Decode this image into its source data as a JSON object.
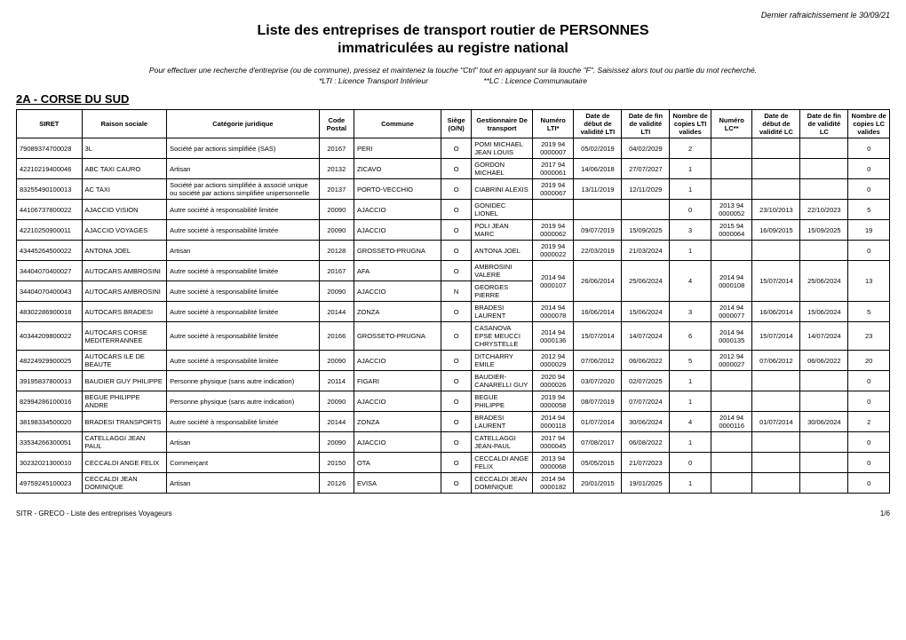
{
  "refresh_label": "Dernier rafraichissement le 30/09/21",
  "title_line1": "Liste des entreprises de transport routier de PERSONNES",
  "title_line2": "immatriculées au registre national",
  "instruction": "Pour effectuer une recherche d'entreprise (ou de commune), pressez et maintenez la touche \"Ctrl\" tout en appuyant sur la touche \"F\". Saisissez alors tout ou partie du mot recherché.",
  "legend_lti": "*LTI : Licence Transport Intérieur",
  "legend_lc": "**LC : Licence Communautaire",
  "section_title": "2A - CORSE DU SUD",
  "columns": [
    "SIRET",
    "Raison sociale",
    "Catégorie juridique",
    "Code Postal",
    "Commune",
    "Siège (O/N)",
    "Gestionnaire De transport",
    "Numéro LTI*",
    "Date de début de validité LTI",
    "Date de fin de validité LTI",
    "Nombre de copies LTI valides",
    "Numéro LC**",
    "Date de début de validité LC",
    "Date de fin de validité LC",
    "Nombre de copies LC valides"
  ],
  "col_classes": [
    "c-siret",
    "c-raison",
    "c-cat",
    "c-cp",
    "c-commune",
    "c-siege",
    "c-gest",
    "c-lti",
    "c-d1",
    "c-d2",
    "c-n1",
    "c-lc",
    "c-d3",
    "c-d4",
    "c-n2"
  ],
  "center_cols": [
    3,
    5,
    7,
    8,
    9,
    10,
    11,
    12,
    13,
    14
  ],
  "rows": [
    [
      "79089374700028",
      "3L",
      "Société par actions simplifiée (SAS)",
      "20167",
      "PERI",
      "O",
      "POMI MICHAEL JEAN LOUIS",
      "2019 94 0000007",
      "05/02/2019",
      "04/02/2029",
      "2",
      "",
      "",
      "",
      "0"
    ],
    [
      "42210219400046",
      "ABC TAXI CAURO",
      "Artisan",
      "20132",
      "ZICAVO",
      "O",
      "GORDON MICHAEL",
      "2017 94 0000061",
      "14/06/2018",
      "27/07/2027",
      "1",
      "",
      "",
      "",
      "0"
    ],
    [
      "83255490100013",
      "AC TAXI",
      "Société par actions simplifiée à associé unique ou société par actions simplifiée unipersonnelle",
      "20137",
      "PORTO-VECCHIO",
      "O",
      "CIABRINI ALEXIS",
      "2019 94 0000067",
      "13/11/2019",
      "12/11/2029",
      "1",
      "",
      "",
      "",
      "0"
    ],
    [
      "44106737800022",
      "AJACCIO VISION",
      "Autre société à responsabilité limitée",
      "20090",
      "AJACCIO",
      "O",
      "GONIDEC LIONEL",
      "",
      "",
      "",
      "0",
      "2013 94 0000052",
      "23/10/2013",
      "22/10/2023",
      "5"
    ],
    [
      "42210250900011",
      "AJACCIO VOYAGES",
      "Autre société à responsabilité limitée",
      "20090",
      "AJACCIO",
      "O",
      "POLI JEAN MARC",
      "2019 94 0000062",
      "09/07/2019",
      "15/09/2025",
      "3",
      "2015 94 0000064",
      "16/09/2015",
      "15/09/2025",
      "19"
    ],
    [
      "43445264500022",
      "ANTONA JOEL",
      "Artisan",
      "20128",
      "GROSSETO-PRUGNA",
      "O",
      "ANTONA JOEL",
      "2019 94 0000022",
      "22/03/2019",
      "21/03/2024",
      "1",
      "",
      "",
      "",
      "0"
    ],
    [
      "34404070400027",
      "AUTOCARS AMBROSINI",
      "Autre société à responsabilité limitée",
      "20167",
      "AFA",
      "O",
      "AMBROSINI VALERE",
      "",
      "",
      "",
      "",
      "",
      "",
      "",
      ""
    ],
    [
      "34404070400043",
      "AUTOCARS AMBROSINI",
      "Autre société à responsabilité limitée",
      "20090",
      "AJACCIO",
      "N",
      "GEORGES PIERRE",
      "2014 94 0000107",
      "26/06/2014",
      "25/06/2024",
      "4",
      "2014 94 0000108",
      "15/07/2014",
      "25/06/2024",
      "13"
    ],
    [
      "48302286900018",
      "AUTOCARS BRADESI",
      "Autre société à responsabilité limitée",
      "20144",
      "ZONZA",
      "O",
      "BRADESI LAURENT",
      "2014 94 0000078",
      "16/06/2014",
      "15/06/2024",
      "3",
      "2014 94 0000077",
      "16/06/2014",
      "15/06/2024",
      "5"
    ],
    [
      "40344209800022",
      "AUTOCARS CORSE MEDITERRANNEE",
      "Autre société à responsabilité limitée",
      "20166",
      "GROSSETO-PRUGNA",
      "O",
      "CASANOVA EPSE MEUCCI CHRYSTELLE",
      "2014 94 0000136",
      "15/07/2014",
      "14/07/2024",
      "6",
      "2014 94 0000135",
      "15/07/2014",
      "14/07/2024",
      "23"
    ],
    [
      "48224929900025",
      "AUTOCARS ILE DE BEAUTE",
      "Autre société à responsabilité limitée",
      "20090",
      "AJACCIO",
      "O",
      "DITCHARRY EMILE",
      "2012 94 0000029",
      "07/06/2012",
      "06/06/2022",
      "5",
      "2012 94 0000027",
      "07/06/2012",
      "06/06/2022",
      "20"
    ],
    [
      "39195837800013",
      "BAUDIER GUY PHILIPPE",
      "Personne physique (sans autre indication)",
      "20114",
      "FIGARI",
      "O",
      "BAUDIER-CANARELLI GUY",
      "2020 94 0000026",
      "03/07/2020",
      "02/07/2025",
      "1",
      "",
      "",
      "",
      "0"
    ],
    [
      "82994286100016",
      "BEGUE PHILIPPE ANDRE",
      "Personne physique (sans autre indication)",
      "20090",
      "AJACCIO",
      "O",
      "BEGUE PHILIPPE",
      "2019 94 0000058",
      "08/07/2019",
      "07/07/2024",
      "1",
      "",
      "",
      "",
      "0"
    ],
    [
      "38198334500020",
      "BRADESI TRANSPORTS",
      "Autre société à responsabilité limitée",
      "20144",
      "ZONZA",
      "O",
      "BRADESI LAURENT",
      "2014 94 0000118",
      "01/07/2014",
      "30/06/2024",
      "4",
      "2014 94 0000116",
      "01/07/2014",
      "30/06/2024",
      "2"
    ],
    [
      "33534266300051",
      "CATELLAGGI JEAN PAUL",
      "Artisan",
      "20090",
      "AJACCIO",
      "O",
      "CATELLAGGI JEAN-PAUL",
      "2017 94 0000045",
      "07/08/2017",
      "06/08/2022",
      "1",
      "",
      "",
      "",
      "0"
    ],
    [
      "30232021300010",
      "CECCALDI ANGE FELIX",
      "Commerçant",
      "20150",
      "OTA",
      "O",
      "CECCALDI ANGE FELIX",
      "2013 94 0000068",
      "05/05/2015",
      "21/07/2023",
      "0",
      "",
      "",
      "",
      "0"
    ],
    [
      "49759245100023",
      "CECCALDI JEAN DOMINIQUE",
      "Artisan",
      "20126",
      "EVISA",
      "O",
      "CECCALDI JEAN DOMINIQUE",
      "2014 94 0000182",
      "20/01/2015",
      "19/01/2025",
      "1",
      "",
      "",
      "",
      "0"
    ]
  ],
  "merges": [
    {
      "topRow": 6,
      "spanRows": 2,
      "cols": [
        7,
        8,
        9,
        10,
        11,
        12,
        13,
        14
      ],
      "values": [
        "2014 94 0000107",
        "26/06/2014",
        "25/06/2024",
        "4",
        "2014 94 0000108",
        "15/07/2014",
        "25/06/2024",
        "13"
      ]
    }
  ],
  "footer_left": "SITR - GRECO - Liste des entreprises Voyageurs",
  "footer_right": "1/6"
}
